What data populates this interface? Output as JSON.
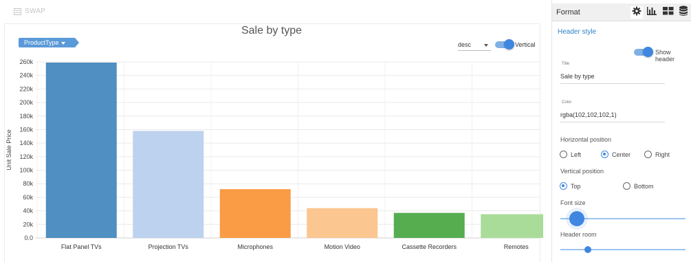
{
  "toolbar": {
    "swap_label": "SWAP"
  },
  "chart_controls": {
    "dimension_chip": "ProductType",
    "sort_value": "desc",
    "vertical_label": "Vertical",
    "vertical_on": true
  },
  "chart_data": {
    "type": "bar",
    "title": "Sale by type",
    "ylabel": "Unit Sale Price",
    "xlabel": "",
    "categories": [
      "Flat Panel TVs",
      "Projection TVs",
      "Microphones",
      "Motion Video",
      "Cassette Recorders",
      "Remotes"
    ],
    "values": [
      259000,
      158000,
      72000,
      44000,
      37000,
      35000
    ],
    "colors": [
      "#4f8fc2",
      "#bdd2ee",
      "#f99c45",
      "#fbc690",
      "#55ad50",
      "#a9dc98"
    ],
    "ylim": [
      0,
      260000
    ],
    "yticks": [
      0,
      20000,
      40000,
      60000,
      80000,
      100000,
      120000,
      140000,
      160000,
      180000,
      200000,
      220000,
      240000,
      260000
    ],
    "ytick_labels": [
      "0.0",
      "20k",
      "40k",
      "60k",
      "80k",
      "100k",
      "120k",
      "140k",
      "160k",
      "180k",
      "200k",
      "220k",
      "240k",
      "260k"
    ],
    "grid": true,
    "legend": "none"
  },
  "format_panel": {
    "title": "Format",
    "tabs": [
      {
        "name": "gear-icon",
        "active": true
      },
      {
        "name": "bar-chart-icon",
        "active": false
      },
      {
        "name": "grid-icon",
        "active": false
      },
      {
        "name": "database-icon",
        "active": false
      }
    ],
    "section_title": "Header style",
    "show_header_label": "Show header",
    "show_header_on": true,
    "title_field_label": "Title",
    "title_field_value": "Sale by type",
    "color_field_label": "Color",
    "color_field_value": "rgba(102,102,102,1)",
    "horizontal_position_label": "Horizontal position",
    "horizontal_options": [
      "Left",
      "Center",
      "Right"
    ],
    "horizontal_selected": "Center",
    "vertical_position_label": "Vertical position",
    "vertical_options": [
      "Top",
      "Bottom"
    ],
    "vertical_selected": "Top",
    "font_size_label": "Font size",
    "font_size_level": 0.1,
    "header_room_label": "Header room",
    "header_room_level": 0.2
  },
  "accent_color": "#3f86e0"
}
